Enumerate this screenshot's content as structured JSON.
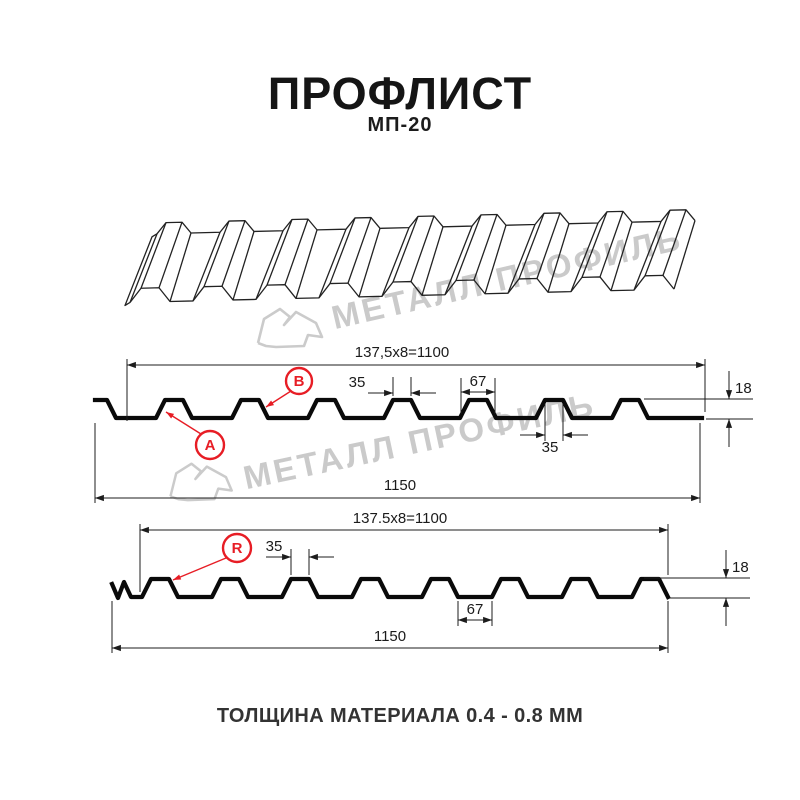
{
  "header": {
    "title": "ПРОФЛИСТ",
    "subtitle": "МП-20"
  },
  "watermark": {
    "text": "МЕТАЛЛ ПРОФИЛЬ",
    "logo": "metall-profil-gem-logo"
  },
  "section_a": {
    "working_width": "137,5x8=1100",
    "crest_width_top": "35",
    "rib_base_width": "67",
    "height": "18",
    "crest_width_bottom": "35",
    "overall_width": "1150",
    "label_a": "A",
    "label_b": "B"
  },
  "section_b": {
    "working_width": "137.5x8=1100",
    "crest_width_top": "35",
    "valley_width": "67",
    "height": "18",
    "overall_width": "1150",
    "label_r": "R"
  },
  "footer": {
    "text": "ТОЛЩИНА МАТЕРИАЛА 0.4 - 0.8 ММ"
  },
  "colors": {
    "accent_red": "#e71d25",
    "line": "#1c1c1c",
    "watermark": "#cacaca"
  }
}
